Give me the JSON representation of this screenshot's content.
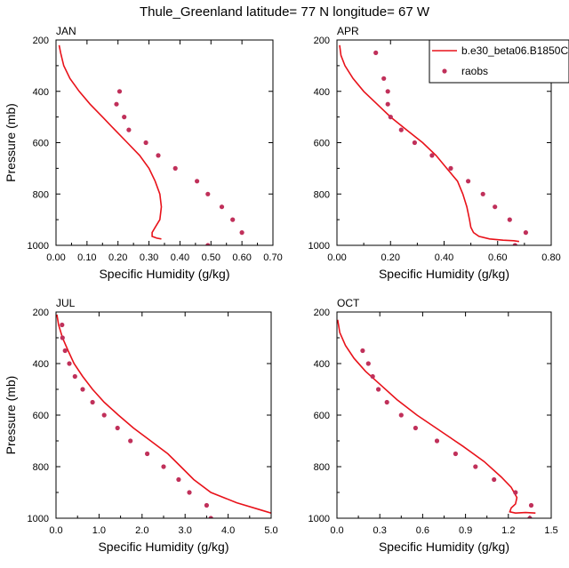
{
  "figure": {
    "title": "Thule_Greenland  latitude= 77 N longitude= 67 W"
  },
  "colors": {
    "model": "#e8121a",
    "raobs": "#c0305a",
    "axis": "#000000"
  },
  "legend": {
    "model_label": "b.e30_beta06.B1850C",
    "obs_label": "raobs"
  },
  "chart_data": [
    {
      "type": "line",
      "panel": "JAN",
      "xlabel": "Specific Humidity (g/kg)",
      "ylabel": "Pressure (mb)",
      "xlim": [
        0,
        0.7
      ],
      "ylim": [
        1000,
        200
      ],
      "x_ticks": [
        "0.00",
        "0.10",
        "0.20",
        "0.30",
        "0.40",
        "0.50",
        "0.60",
        "0.70"
      ],
      "y_ticks": [
        "200",
        "400",
        "600",
        "800",
        "1000"
      ],
      "series": [
        {
          "kind": "line",
          "x": [
            0.01,
            0.015,
            0.025,
            0.045,
            0.075,
            0.11,
            0.15,
            0.19,
            0.23,
            0.27,
            0.3,
            0.32,
            0.335,
            0.34,
            0.335,
            0.32,
            0.31,
            0.31,
            0.325,
            0.34
          ],
          "y": [
            220,
            250,
            300,
            350,
            400,
            450,
            500,
            550,
            600,
            650,
            700,
            750,
            800,
            850,
            900,
            930,
            950,
            965,
            972,
            975
          ]
        },
        {
          "name": "raobs",
          "kind": "points",
          "x": [
            0.205,
            0.195,
            0.22,
            0.235,
            0.29,
            0.33,
            0.385,
            0.455,
            0.49,
            0.535,
            0.57,
            0.6,
            0.49
          ],
          "y": [
            400,
            450,
            500,
            550,
            600,
            650,
            700,
            750,
            800,
            850,
            900,
            950,
            1000
          ]
        }
      ]
    },
    {
      "type": "line",
      "panel": "APR",
      "xlabel": "Specific Humidity (g/kg)",
      "ylabel": "",
      "xlim": [
        0,
        0.8
      ],
      "ylim": [
        1000,
        200
      ],
      "x_ticks": [
        "0.00",
        "0.20",
        "0.40",
        "0.60",
        "0.80"
      ],
      "y_ticks": [
        "200",
        "400",
        "600",
        "800",
        "1000"
      ],
      "legend_position": "top-right",
      "series": [
        {
          "name": "b.e30_beta06.B1850C",
          "kind": "line",
          "x": [
            0.01,
            0.015,
            0.03,
            0.06,
            0.1,
            0.15,
            0.2,
            0.26,
            0.32,
            0.37,
            0.41,
            0.45,
            0.47,
            0.485,
            0.495,
            0.5,
            0.51,
            0.53,
            0.57,
            0.62,
            0.66,
            0.68
          ],
          "y": [
            220,
            260,
            300,
            350,
            400,
            450,
            500,
            550,
            600,
            650,
            700,
            750,
            800,
            850,
            900,
            930,
            950,
            965,
            975,
            980,
            982,
            985
          ]
        },
        {
          "name": "raobs",
          "kind": "points",
          "x": [
            0.145,
            0.175,
            0.19,
            0.19,
            0.2,
            0.24,
            0.29,
            0.355,
            0.425,
            0.49,
            0.545,
            0.59,
            0.645,
            0.705,
            0.665
          ],
          "y": [
            250,
            350,
            400,
            450,
            500,
            550,
            600,
            650,
            700,
            750,
            800,
            850,
            900,
            950,
            1000
          ]
        }
      ]
    },
    {
      "type": "line",
      "panel": "JUL",
      "xlabel": "Specific Humidity (g/kg)",
      "ylabel": "Pressure (mb)",
      "xlim": [
        0,
        5.0
      ],
      "ylim": [
        1000,
        200
      ],
      "x_ticks": [
        "0.0",
        "1.0",
        "2.0",
        "3.0",
        "4.0",
        "5.0"
      ],
      "y_ticks": [
        "200",
        "400",
        "600",
        "800",
        "1000"
      ],
      "series": [
        {
          "kind": "line",
          "x": [
            0.02,
            0.06,
            0.15,
            0.28,
            0.42,
            0.62,
            0.85,
            1.12,
            1.45,
            1.8,
            2.2,
            2.6,
            2.9,
            3.2,
            3.6,
            4.2,
            4.8,
            5.0
          ],
          "y": [
            210,
            250,
            300,
            350,
            400,
            450,
            500,
            550,
            600,
            650,
            700,
            750,
            800,
            850,
            900,
            940,
            970,
            980
          ]
        },
        {
          "name": "raobs",
          "kind": "points",
          "x": [
            0.14,
            0.15,
            0.21,
            0.31,
            0.44,
            0.62,
            0.85,
            1.12,
            1.43,
            1.73,
            2.12,
            2.5,
            2.85,
            3.1,
            3.5,
            3.6
          ],
          "y": [
            250,
            300,
            350,
            400,
            450,
            500,
            550,
            600,
            650,
            700,
            750,
            800,
            850,
            900,
            950,
            1000
          ]
        }
      ]
    },
    {
      "type": "line",
      "panel": "OCT",
      "xlabel": "Specific Humidity (g/kg)",
      "ylabel": "",
      "xlim": [
        0,
        1.5
      ],
      "ylim": [
        1000,
        200
      ],
      "x_ticks": [
        "0.0",
        "0.3",
        "0.6",
        "0.9",
        "1.2",
        "1.5"
      ],
      "y_ticks": [
        "200",
        "400",
        "600",
        "800",
        "1000"
      ],
      "series": [
        {
          "kind": "line",
          "x": [
            0.005,
            0.02,
            0.06,
            0.12,
            0.2,
            0.3,
            0.42,
            0.56,
            0.72,
            0.88,
            1.03,
            1.15,
            1.22,
            1.26,
            1.25,
            1.22,
            1.21,
            1.25,
            1.32,
            1.39
          ],
          "y": [
            230,
            280,
            330,
            380,
            430,
            480,
            540,
            600,
            660,
            720,
            780,
            840,
            880,
            920,
            945,
            960,
            975,
            980,
            978,
            980
          ]
        },
        {
          "name": "raobs",
          "kind": "points",
          "x": [
            0.18,
            0.22,
            0.25,
            0.29,
            0.35,
            0.45,
            0.55,
            0.7,
            0.83,
            0.97,
            1.1,
            1.25,
            1.36,
            1.35
          ],
          "y": [
            350,
            400,
            450,
            500,
            550,
            600,
            650,
            700,
            750,
            800,
            850,
            900,
            950,
            1000
          ]
        }
      ]
    }
  ]
}
